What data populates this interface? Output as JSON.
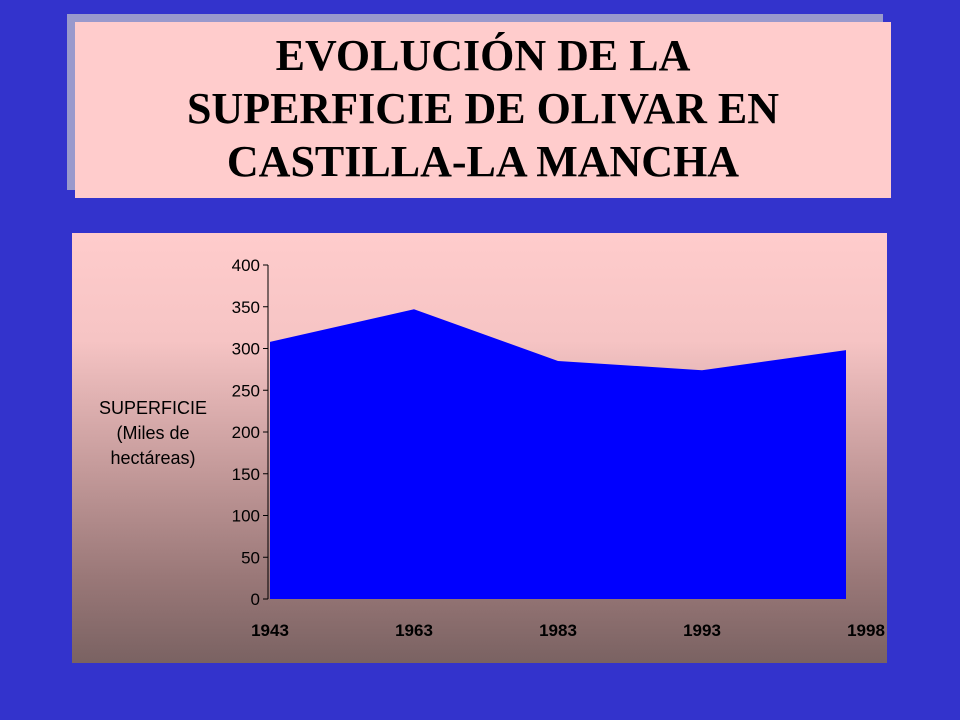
{
  "title": "EVOLUCIÓN DE LA\nSUPERFICIE DE OLIVAR EN\nCASTILLA-LA MANCHA",
  "colors": {
    "background": "#3333cc",
    "title_box": "#ffcccc",
    "series_fill": "#0000ff"
  },
  "chart_data": {
    "type": "area",
    "title": "EVOLUCIÓN DE LA SUPERFICIE DE OLIVAR EN CASTILLA-LA MANCHA",
    "categories": [
      "1943",
      "1963",
      "1983",
      "1993",
      "1998"
    ],
    "series": [
      {
        "values": [
          308,
          347,
          285,
          274,
          298
        ]
      }
    ],
    "ylabel": "SUPERFICIE\n(Miles de\nhectáreas)",
    "xlabel": "",
    "ylim": [
      0,
      400
    ],
    "yticks": [
      0,
      50,
      100,
      150,
      200,
      250,
      300,
      350,
      400
    ],
    "grid": false,
    "legend": "none"
  }
}
